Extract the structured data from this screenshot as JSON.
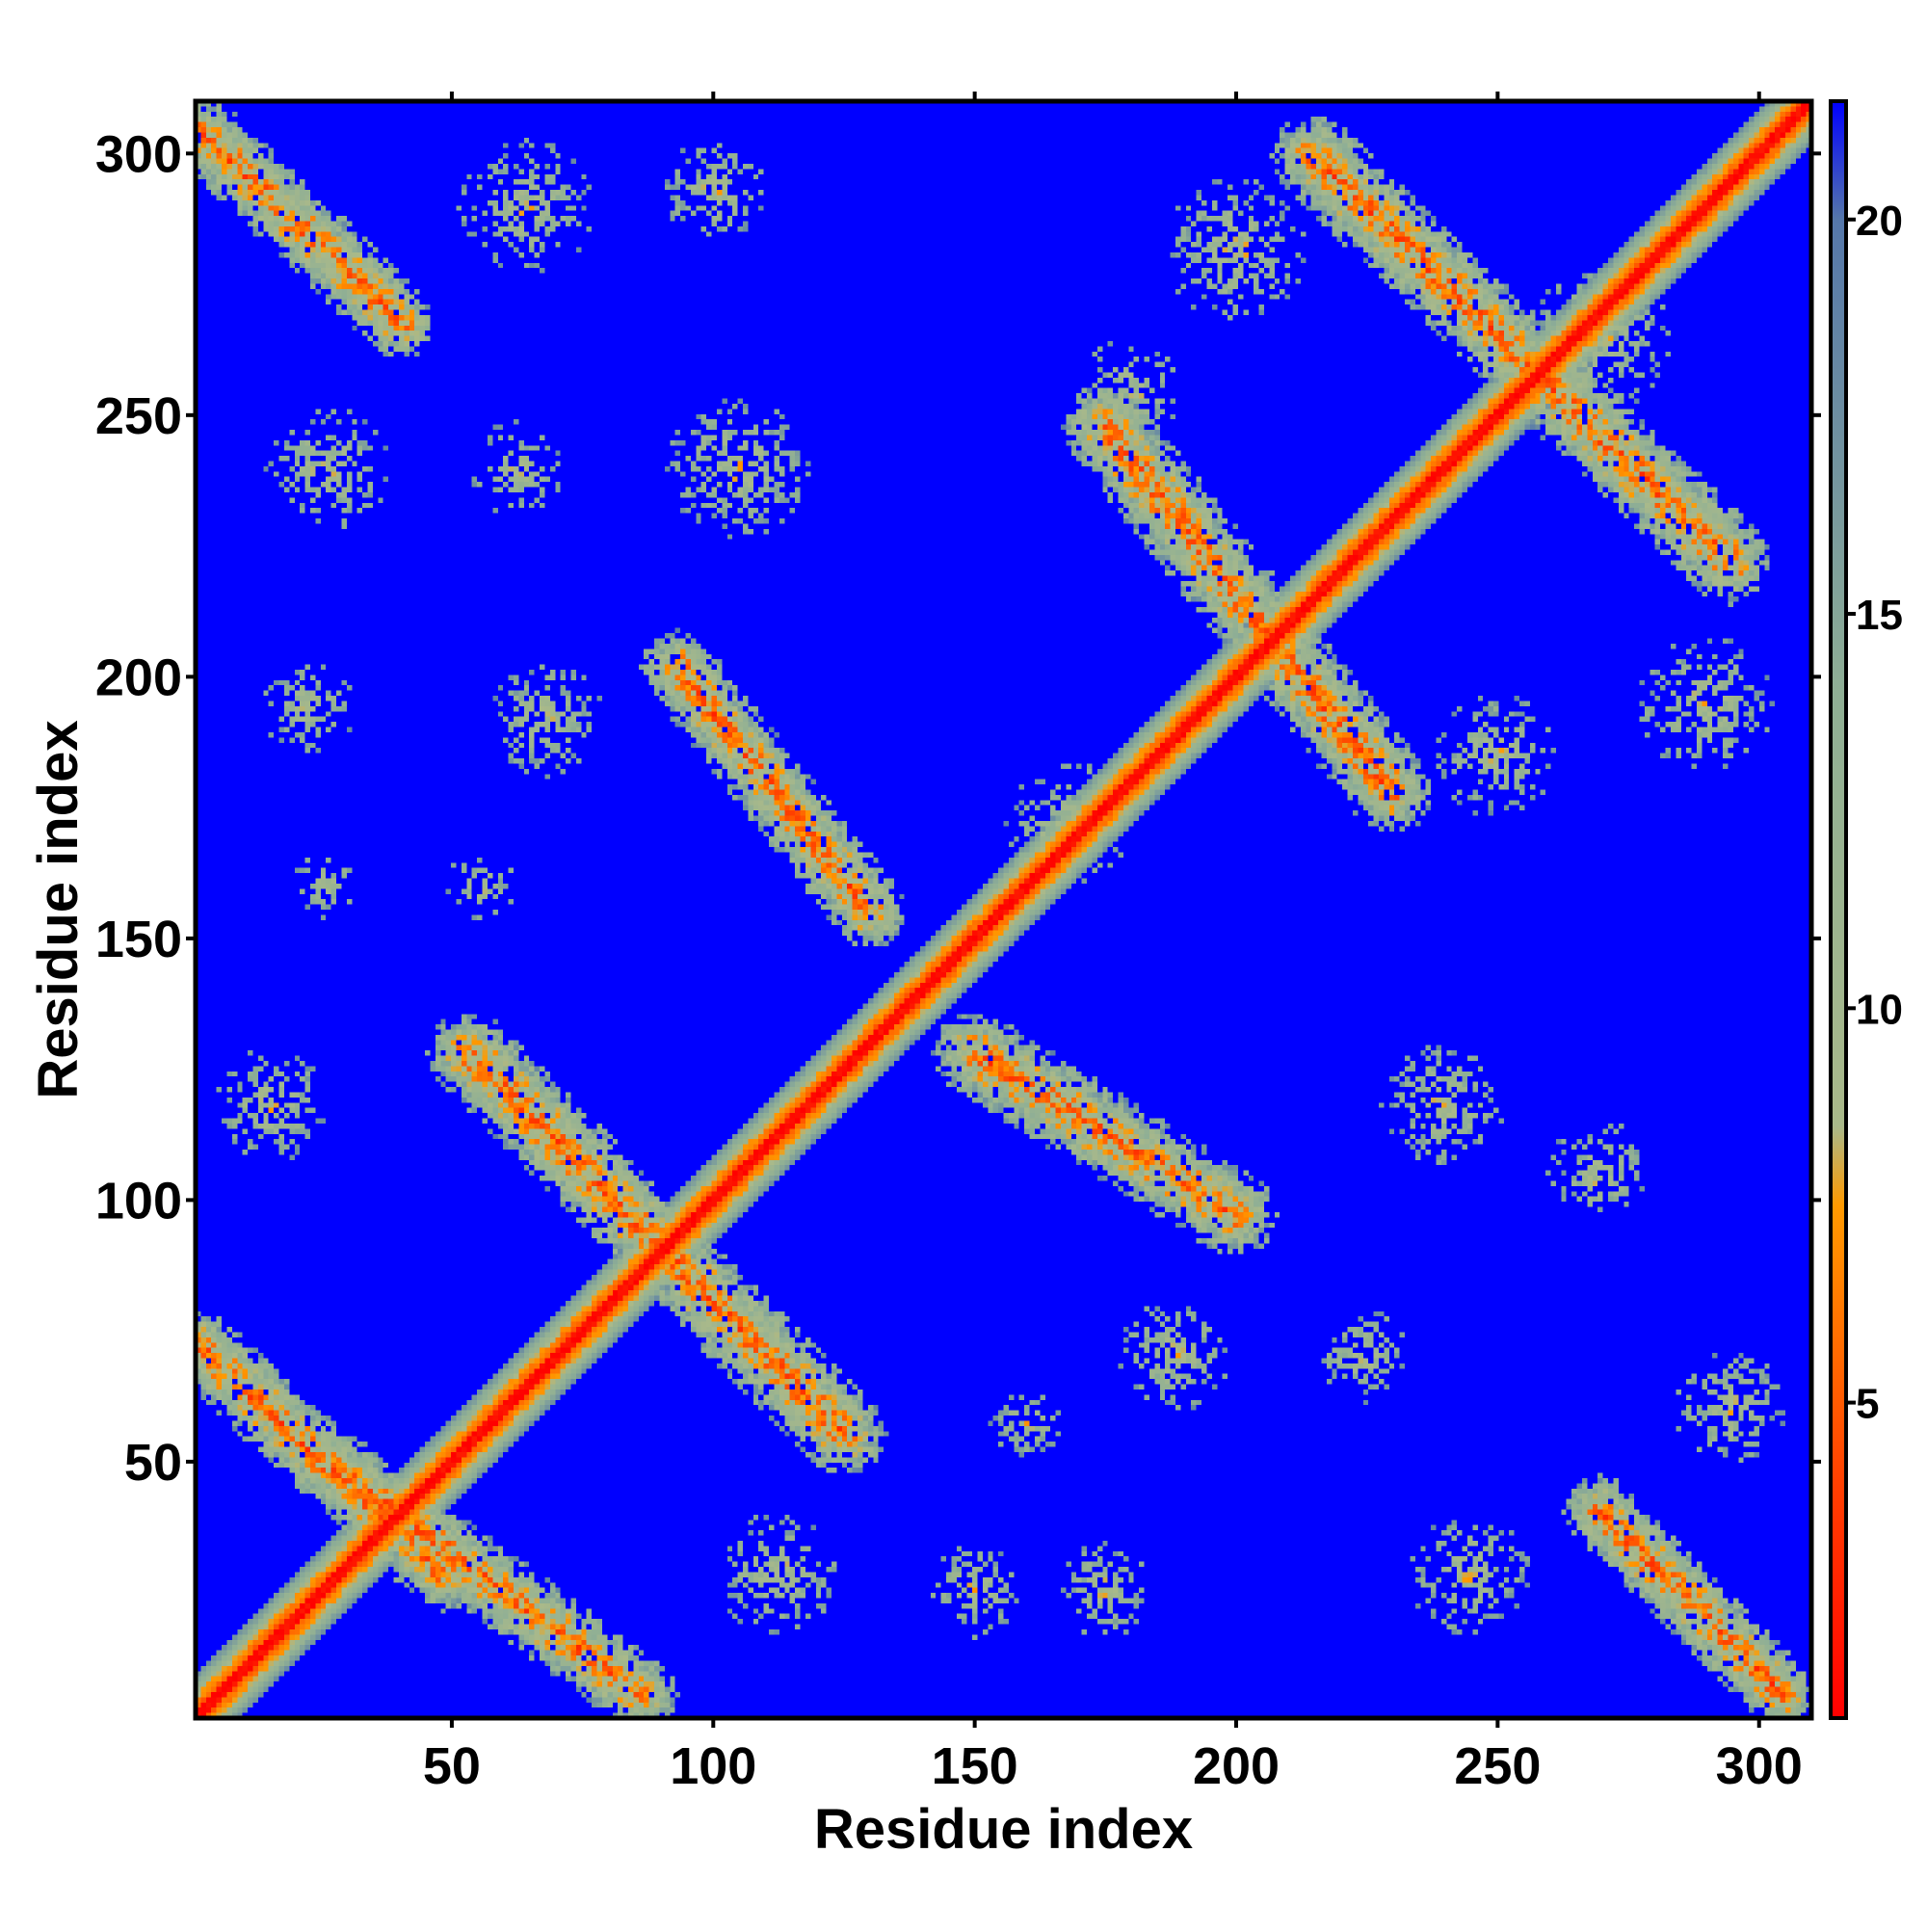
{
  "chart_data": {
    "type": "heatmap",
    "title": "",
    "xlabel": "Residue index",
    "ylabel": "Residue index",
    "xlim": [
      1,
      310
    ],
    "ylim": [
      1,
      310
    ],
    "x_ticks": [
      50,
      100,
      150,
      200,
      250,
      300
    ],
    "y_ticks": [
      50,
      100,
      150,
      200,
      250,
      300
    ],
    "colorbar": {
      "ticks": [
        5,
        10,
        15,
        20
      ],
      "range": [
        1,
        21.5
      ],
      "colors": [
        {
          "value": 1,
          "color": "#ff0000"
        },
        {
          "value": 4,
          "color": "#ff4000"
        },
        {
          "value": 7.5,
          "color": "#ff9a00"
        },
        {
          "value": 8.5,
          "color": "#a9b98a"
        },
        {
          "value": 14,
          "color": "#8faf95"
        },
        {
          "value": 20,
          "color": "#5577aa"
        },
        {
          "value": 21.5,
          "color": "#0000ff"
        }
      ]
    },
    "background_color": "#0000ff",
    "diagonal_band_halfwidth": 4,
    "contact_bands": [
      {
        "start": [
          1,
          72
        ],
        "end": [
          48,
          28
        ],
        "width": 7
      },
      {
        "start": [
          1,
          305
        ],
        "end": [
          40,
          268
        ],
        "width": 7
      },
      {
        "start": [
          28,
          48
        ],
        "end": [
          86,
          5
        ],
        "width": 7
      },
      {
        "start": [
          53,
          128
        ],
        "end": [
          125,
          55
        ],
        "width": 8
      },
      {
        "start": [
          93,
          202
        ],
        "end": [
          130,
          155
        ],
        "width": 7
      },
      {
        "start": [
          150,
          128
        ],
        "end": [
          200,
          97
        ],
        "width": 8
      },
      {
        "start": [
          175,
          248
        ],
        "end": [
          230,
          178
        ],
        "width": 8
      },
      {
        "start": [
          215,
          300
        ],
        "end": [
          295,
          222
        ],
        "width": 8
      },
      {
        "start": [
          270,
          40
        ],
        "end": [
          305,
          5
        ],
        "width": 7
      }
    ],
    "contact_clusters": [
      {
        "x": 15,
        "y": 118,
        "r": 11
      },
      {
        "x": 22,
        "y": 194,
        "r": 9
      },
      {
        "x": 25,
        "y": 160,
        "r": 6
      },
      {
        "x": 26,
        "y": 240,
        "r": 12
      },
      {
        "x": 55,
        "y": 160,
        "r": 7
      },
      {
        "x": 62,
        "y": 240,
        "r": 9
      },
      {
        "x": 68,
        "y": 192,
        "r": 11
      },
      {
        "x": 64,
        "y": 290,
        "r": 13
      },
      {
        "x": 100,
        "y": 293,
        "r": 10
      },
      {
        "x": 105,
        "y": 240,
        "r": 14
      },
      {
        "x": 112,
        "y": 28,
        "r": 12
      },
      {
        "x": 150,
        "y": 25,
        "r": 9
      },
      {
        "x": 160,
        "y": 57,
        "r": 7
      },
      {
        "x": 168,
        "y": 172,
        "r": 12
      },
      {
        "x": 175,
        "y": 25,
        "r": 9
      },
      {
        "x": 180,
        "y": 255,
        "r": 10
      },
      {
        "x": 188,
        "y": 70,
        "r": 11
      },
      {
        "x": 200,
        "y": 282,
        "r": 14
      },
      {
        "x": 225,
        "y": 70,
        "r": 9
      },
      {
        "x": 240,
        "y": 118,
        "r": 12
      },
      {
        "x": 245,
        "y": 28,
        "r": 12
      },
      {
        "x": 250,
        "y": 185,
        "r": 12
      },
      {
        "x": 270,
        "y": 265,
        "r": 14
      },
      {
        "x": 270,
        "y": 105,
        "r": 10
      },
      {
        "x": 290,
        "y": 195,
        "r": 13
      },
      {
        "x": 295,
        "y": 60,
        "r": 11
      }
    ]
  }
}
